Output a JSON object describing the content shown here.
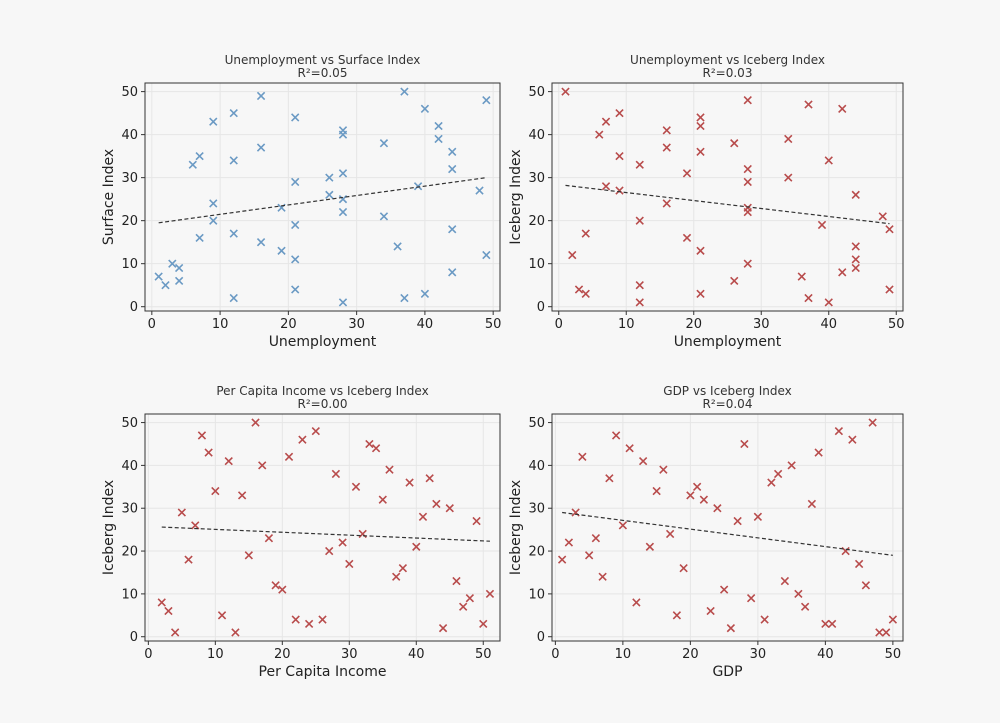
{
  "colors": {
    "background": "#f7f7f7",
    "blue_marker": "#6b9ac4",
    "red_marker": "#b84c4c",
    "trendline": "#333333",
    "grid": "#e6e6e6"
  },
  "chart_data": [
    {
      "type": "scatter",
      "title": "Unemployment vs Surface Index",
      "subtitle": "R²=0.05",
      "xlabel": "Unemployment",
      "ylabel": "Surface Index",
      "xlim": [
        -1,
        51
      ],
      "ylim": [
        -1,
        52
      ],
      "xticks": [
        0,
        10,
        20,
        30,
        40,
        50
      ],
      "yticks": [
        0,
        10,
        20,
        30,
        40,
        50
      ],
      "grid": true,
      "marker": "x",
      "color": "#6b9ac4",
      "trendline": {
        "x": [
          1,
          49
        ],
        "y": [
          19.5,
          30
        ]
      },
      "points": [
        [
          1,
          7
        ],
        [
          2,
          5
        ],
        [
          3,
          10
        ],
        [
          4,
          9
        ],
        [
          4,
          6
        ],
        [
          6,
          33
        ],
        [
          7,
          35
        ],
        [
          7,
          16
        ],
        [
          9,
          43
        ],
        [
          9,
          24
        ],
        [
          9,
          20
        ],
        [
          12,
          45
        ],
        [
          12,
          34
        ],
        [
          12,
          17
        ],
        [
          12,
          2
        ],
        [
          16,
          49
        ],
        [
          16,
          37
        ],
        [
          16,
          15
        ],
        [
          19,
          23
        ],
        [
          19,
          13
        ],
        [
          21,
          44
        ],
        [
          21,
          29
        ],
        [
          21,
          19
        ],
        [
          21,
          11
        ],
        [
          21,
          4
        ],
        [
          26,
          30
        ],
        [
          26,
          26
        ],
        [
          28,
          41
        ],
        [
          28,
          40
        ],
        [
          28,
          31
        ],
        [
          28,
          25
        ],
        [
          28,
          22
        ],
        [
          28,
          1
        ],
        [
          34,
          38
        ],
        [
          34,
          21
        ],
        [
          36,
          14
        ],
        [
          37,
          50
        ],
        [
          37,
          2
        ],
        [
          39,
          28
        ],
        [
          40,
          46
        ],
        [
          40,
          3
        ],
        [
          42,
          42
        ],
        [
          42,
          39
        ],
        [
          44,
          36
        ],
        [
          44,
          32
        ],
        [
          44,
          18
        ],
        [
          44,
          8
        ],
        [
          48,
          27
        ],
        [
          49,
          48
        ],
        [
          49,
          12
        ]
      ]
    },
    {
      "type": "scatter",
      "title": "Unemployment vs Iceberg Index",
      "subtitle": "R²=0.03",
      "xlabel": "Unemployment",
      "ylabel": "Iceberg Index",
      "xlim": [
        -1,
        51
      ],
      "ylim": [
        -1,
        52
      ],
      "xticks": [
        0,
        10,
        20,
        30,
        40,
        50
      ],
      "yticks": [
        0,
        10,
        20,
        30,
        40,
        50
      ],
      "grid": true,
      "marker": "x",
      "color": "#b84c4c",
      "trendline": {
        "x": [
          1,
          49
        ],
        "y": [
          28.2,
          19.3
        ]
      },
      "points": [
        [
          1,
          50
        ],
        [
          2,
          12
        ],
        [
          3,
          4
        ],
        [
          4,
          17
        ],
        [
          4,
          3
        ],
        [
          6,
          40
        ],
        [
          7,
          43
        ],
        [
          7,
          28
        ],
        [
          9,
          45
        ],
        [
          9,
          35
        ],
        [
          9,
          27
        ],
        [
          12,
          33
        ],
        [
          12,
          20
        ],
        [
          12,
          5
        ],
        [
          12,
          1
        ],
        [
          16,
          41
        ],
        [
          16,
          37
        ],
        [
          16,
          24
        ],
        [
          19,
          31
        ],
        [
          19,
          16
        ],
        [
          21,
          44
        ],
        [
          21,
          42
        ],
        [
          21,
          36
        ],
        [
          21,
          13
        ],
        [
          21,
          3
        ],
        [
          26,
          38
        ],
        [
          26,
          6
        ],
        [
          28,
          48
        ],
        [
          28,
          32
        ],
        [
          28,
          29
        ],
        [
          28,
          23
        ],
        [
          28,
          22
        ],
        [
          28,
          10
        ],
        [
          34,
          39
        ],
        [
          34,
          30
        ],
        [
          36,
          7
        ],
        [
          37,
          47
        ],
        [
          37,
          2
        ],
        [
          39,
          19
        ],
        [
          40,
          34
        ],
        [
          40,
          1
        ],
        [
          42,
          46
        ],
        [
          42,
          8
        ],
        [
          44,
          26
        ],
        [
          44,
          14
        ],
        [
          44,
          11
        ],
        [
          44,
          9
        ],
        [
          48,
          21
        ],
        [
          49,
          18
        ],
        [
          49,
          4
        ]
      ]
    },
    {
      "type": "scatter",
      "title": "Per Capita Income vs Iceberg Index",
      "subtitle": "R²=0.00",
      "xlabel": "Per Capita Income",
      "ylabel": "Iceberg Index",
      "xlim": [
        -0.5,
        52.5
      ],
      "ylim": [
        -1,
        52
      ],
      "xticks": [
        0,
        10,
        20,
        30,
        40,
        50
      ],
      "yticks": [
        0,
        10,
        20,
        30,
        40,
        50
      ],
      "grid": true,
      "marker": "x",
      "color": "#b84c4c",
      "trendline": {
        "x": [
          2,
          51
        ],
        "y": [
          25.6,
          22.3
        ]
      },
      "points": [
        [
          2,
          8
        ],
        [
          3,
          6
        ],
        [
          4,
          1
        ],
        [
          5,
          29
        ],
        [
          6,
          18
        ],
        [
          7,
          26
        ],
        [
          8,
          47
        ],
        [
          9,
          43
        ],
        [
          10,
          34
        ],
        [
          11,
          5
        ],
        [
          12,
          41
        ],
        [
          13,
          1
        ],
        [
          14,
          33
        ],
        [
          15,
          19
        ],
        [
          16,
          50
        ],
        [
          17,
          40
        ],
        [
          18,
          23
        ],
        [
          19,
          12
        ],
        [
          20,
          11
        ],
        [
          21,
          42
        ],
        [
          22,
          4
        ],
        [
          23,
          46
        ],
        [
          24,
          3
        ],
        [
          25,
          48
        ],
        [
          26,
          4
        ],
        [
          27,
          20
        ],
        [
          28,
          38
        ],
        [
          29,
          22
        ],
        [
          30,
          17
        ],
        [
          31,
          35
        ],
        [
          32,
          24
        ],
        [
          33,
          45
        ],
        [
          34,
          44
        ],
        [
          35,
          32
        ],
        [
          36,
          39
        ],
        [
          37,
          14
        ],
        [
          38,
          16
        ],
        [
          39,
          36
        ],
        [
          40,
          21
        ],
        [
          41,
          28
        ],
        [
          42,
          37
        ],
        [
          43,
          31
        ],
        [
          44,
          2
        ],
        [
          45,
          30
        ],
        [
          46,
          13
        ],
        [
          47,
          7
        ],
        [
          48,
          9
        ],
        [
          49,
          27
        ],
        [
          50,
          3
        ],
        [
          51,
          10
        ]
      ]
    },
    {
      "type": "scatter",
      "title": "GDP vs Iceberg Index",
      "subtitle": "R²=0.04",
      "xlabel": "GDP",
      "ylabel": "Iceberg Index",
      "xlim": [
        -0.5,
        51.5
      ],
      "ylim": [
        -1,
        52
      ],
      "xticks": [
        0,
        10,
        20,
        30,
        40,
        50
      ],
      "yticks": [
        0,
        10,
        20,
        30,
        40,
        50
      ],
      "grid": true,
      "marker": "x",
      "color": "#b84c4c",
      "trendline": {
        "x": [
          1,
          50
        ],
        "y": [
          29,
          19
        ]
      },
      "points": [
        [
          1,
          18
        ],
        [
          2,
          22
        ],
        [
          3,
          29
        ],
        [
          4,
          42
        ],
        [
          5,
          19
        ],
        [
          6,
          23
        ],
        [
          7,
          14
        ],
        [
          8,
          37
        ],
        [
          9,
          47
        ],
        [
          10,
          26
        ],
        [
          11,
          44
        ],
        [
          12,
          8
        ],
        [
          13,
          41
        ],
        [
          14,
          21
        ],
        [
          15,
          34
        ],
        [
          16,
          39
        ],
        [
          17,
          24
        ],
        [
          18,
          5
        ],
        [
          19,
          16
        ],
        [
          20,
          33
        ],
        [
          21,
          35
        ],
        [
          22,
          32
        ],
        [
          23,
          6
        ],
        [
          24,
          30
        ],
        [
          25,
          11
        ],
        [
          26,
          2
        ],
        [
          27,
          27
        ],
        [
          28,
          45
        ],
        [
          29,
          9
        ],
        [
          30,
          28
        ],
        [
          31,
          4
        ],
        [
          32,
          36
        ],
        [
          33,
          38
        ],
        [
          34,
          13
        ],
        [
          35,
          40
        ],
        [
          36,
          10
        ],
        [
          37,
          7
        ],
        [
          38,
          31
        ],
        [
          39,
          43
        ],
        [
          40,
          3
        ],
        [
          41,
          3
        ],
        [
          42,
          48
        ],
        [
          43,
          20
        ],
        [
          44,
          46
        ],
        [
          45,
          17
        ],
        [
          46,
          12
        ],
        [
          47,
          50
        ],
        [
          48,
          1
        ],
        [
          49,
          1
        ],
        [
          50,
          4
        ]
      ]
    }
  ]
}
